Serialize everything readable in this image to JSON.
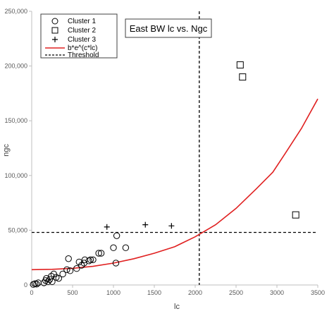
{
  "chart_data": {
    "type": "scatter",
    "title": "East BW lc vs. Ngc",
    "xlabel": "lc",
    "ylabel": "ngc",
    "xlim": [
      0,
      3500
    ],
    "ylim": [
      0,
      250000
    ],
    "x_ticks": [
      0,
      500,
      1000,
      1500,
      2000,
      2500,
      3000,
      3500
    ],
    "x_tick_labels": [
      "0",
      "500",
      "1000",
      "1500",
      "2000",
      "2500",
      "3000",
      "3500"
    ],
    "y_ticks": [
      0,
      50000,
      100000,
      150000,
      200000,
      250000
    ],
    "y_tick_labels": [
      "0",
      "50,000",
      "100,000",
      "150,000",
      "200,000",
      "250,000"
    ],
    "grid": false,
    "legend_position": "top-left",
    "series": [
      {
        "name": "Cluster 1",
        "marker": "circle",
        "color": "#000000",
        "points": [
          [
            20,
            500
          ],
          [
            40,
            1200
          ],
          [
            60,
            800
          ],
          [
            80,
            2000
          ],
          [
            150,
            2000
          ],
          [
            170,
            4000
          ],
          [
            180,
            6000
          ],
          [
            200,
            3000
          ],
          [
            220,
            5000
          ],
          [
            240,
            8000
          ],
          [
            250,
            3000
          ],
          [
            270,
            10000
          ],
          [
            300,
            7000
          ],
          [
            330,
            6000
          ],
          [
            380,
            10000
          ],
          [
            430,
            14000
          ],
          [
            450,
            24000
          ],
          [
            470,
            13000
          ],
          [
            550,
            15000
          ],
          [
            580,
            21000
          ],
          [
            610,
            18000
          ],
          [
            640,
            20000
          ],
          [
            650,
            23000
          ],
          [
            700,
            22000
          ],
          [
            720,
            23000
          ],
          [
            750,
            23000
          ],
          [
            820,
            29000
          ],
          [
            850,
            29000
          ],
          [
            1000,
            34000
          ],
          [
            1040,
            45000
          ],
          [
            1030,
            20000
          ],
          [
            1150,
            34000
          ]
        ]
      },
      {
        "name": "Cluster 2",
        "marker": "square",
        "color": "#000000",
        "points": [
          [
            2550,
            201000
          ],
          [
            2580,
            190000
          ],
          [
            3230,
            64000
          ]
        ]
      },
      {
        "name": "Cluster 3",
        "marker": "plus",
        "color": "#000000",
        "points": [
          [
            920,
            53000
          ],
          [
            1390,
            55000
          ],
          [
            1710,
            54000
          ]
        ]
      }
    ],
    "curve": {
      "name": "b*e^(c*lc)",
      "color": "#e02020",
      "points": [
        [
          0,
          14000
        ],
        [
          250,
          14300
        ],
        [
          500,
          15200
        ],
        [
          750,
          17000
        ],
        [
          1000,
          20000
        ],
        [
          1250,
          24000
        ],
        [
          1500,
          29000
        ],
        [
          1750,
          35000
        ],
        [
          2000,
          44000
        ],
        [
          2250,
          55000
        ],
        [
          2500,
          70000
        ],
        [
          2750,
          88000
        ],
        [
          2950,
          103000
        ],
        [
          3100,
          120000
        ],
        [
          3300,
          143000
        ],
        [
          3500,
          170000
        ]
      ]
    },
    "threshold": {
      "name": "Threshold",
      "x": 2050,
      "y": 48000,
      "color": "#000000"
    }
  }
}
